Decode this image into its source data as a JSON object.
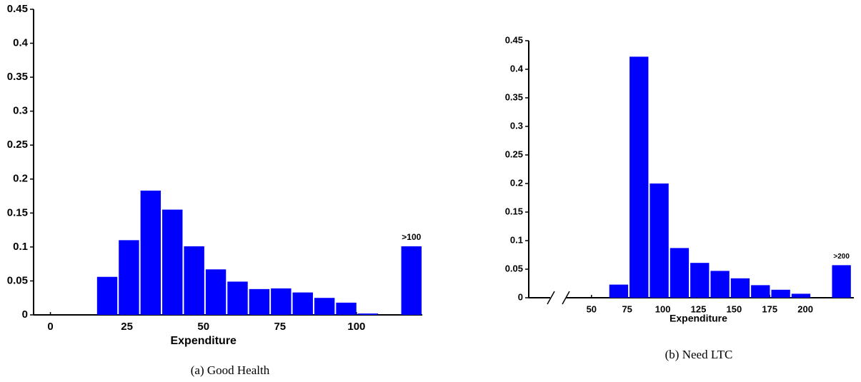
{
  "chart_data": [
    {
      "type": "histogram",
      "xlabel": "Expenditure",
      "caption": "(a) Good Health",
      "annotation": ">100",
      "color": "#0000ff",
      "bins": [
        15,
        22.1,
        29.2,
        36.3,
        43.4,
        50.5,
        57.6,
        64.7,
        71.8,
        78.9,
        86,
        93.1,
        100.2,
        107.3,
        114.4,
        121.5
      ],
      "values": [
        0.056,
        0.11,
        0.183,
        0.155,
        0.101,
        0.067,
        0.049,
        0.038,
        0.039,
        0.033,
        0.025,
        0.018,
        0.002,
        0,
        0.101
      ],
      "xlim": [
        -5.5,
        121.5
      ],
      "xticks": [
        0,
        25,
        50,
        75,
        100
      ],
      "ylim": [
        0,
        0.45
      ],
      "yticks": [
        0,
        0.05,
        0.1,
        0.15,
        0.2,
        0.25,
        0.3,
        0.35,
        0.4,
        0.45
      ]
    },
    {
      "type": "histogram",
      "xlabel": "Expenditure",
      "caption": "(b) Need LTC",
      "annotation": ">200",
      "color": "#0000ff",
      "bins": [
        62,
        76.2,
        90.4,
        104.6,
        118.8,
        133,
        147.2,
        161.4,
        175.6,
        189.8,
        204,
        218.2,
        232.4
      ],
      "values": [
        0.023,
        0.422,
        0.2,
        0.087,
        0.061,
        0.047,
        0.034,
        0.022,
        0.014,
        0.007,
        0,
        0.057
      ],
      "xlim": [
        6,
        234
      ],
      "xticks": [
        50,
        75,
        100,
        125,
        150,
        175,
        200
      ],
      "ylim": [
        0,
        0.45
      ],
      "yticks": [
        0,
        0.05,
        0.1,
        0.15,
        0.2,
        0.25,
        0.3,
        0.35,
        0.4,
        0.45
      ]
    }
  ]
}
